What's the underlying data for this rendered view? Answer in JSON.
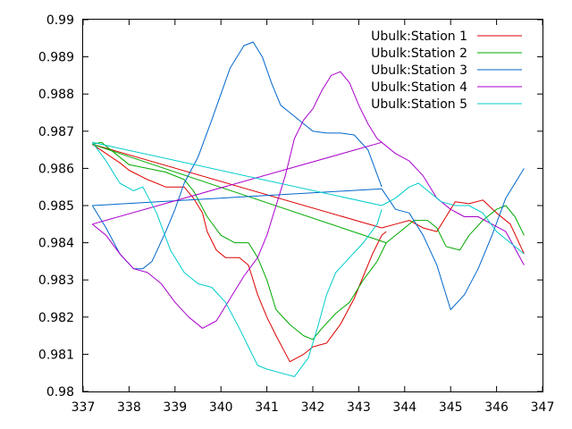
{
  "chart_data": {
    "type": "line",
    "title": "",
    "xlabel": "",
    "ylabel": "",
    "xlim": [
      337,
      347
    ],
    "ylim": [
      0.98,
      0.99
    ],
    "x_ticks": [
      "337",
      "338",
      "339",
      "340",
      "341",
      "342",
      "343",
      "344",
      "345",
      "346",
      "347"
    ],
    "y_ticks": [
      "0.98",
      "0.981",
      "0.982",
      "0.983",
      "0.984",
      "0.985",
      "0.986",
      "0.987",
      "0.988",
      "0.989",
      "0.99"
    ],
    "grid": false,
    "legend_position": "top-right",
    "series": [
      {
        "name": "Ubulk:Station 1",
        "color": "#dd0000",
        "segments": [
          [
            [
              337.2,
              0.98665
            ],
            [
              337.5,
              0.9864
            ],
            [
              337.8,
              0.98615
            ],
            [
              338.0,
              0.98595
            ],
            [
              338.4,
              0.9857
            ],
            [
              338.8,
              0.9855
            ],
            [
              339.2,
              0.9855
            ],
            [
              339.4,
              0.9852
            ],
            [
              339.6,
              0.9848
            ],
            [
              339.7,
              0.9843
            ],
            [
              339.9,
              0.9838
            ],
            [
              340.1,
              0.9836
            ],
            [
              340.4,
              0.9836
            ],
            [
              340.6,
              0.9834
            ],
            [
              340.8,
              0.9826
            ],
            [
              341.0,
              0.982
            ],
            [
              341.2,
              0.9815
            ],
            [
              341.5,
              0.9808
            ],
            [
              341.8,
              0.981
            ],
            [
              342.0,
              0.9812
            ],
            [
              342.3,
              0.9813
            ],
            [
              342.6,
              0.9818
            ],
            [
              342.9,
              0.9825
            ],
            [
              343.1,
              0.9831
            ],
            [
              343.3,
              0.9837
            ],
            [
              343.5,
              0.9842
            ],
            [
              343.6,
              0.9843
            ]
          ],
          [
            [
              343.5,
              0.9844
            ],
            [
              337.2,
              0.98665
            ]
          ],
          [
            [
              343.5,
              0.9844
            ],
            [
              343.8,
              0.9845
            ],
            [
              344.1,
              0.9846
            ],
            [
              344.4,
              0.9844
            ],
            [
              344.7,
              0.9843
            ],
            [
              344.9,
              0.9847
            ],
            [
              345.1,
              0.9851
            ],
            [
              345.4,
              0.98505
            ],
            [
              345.7,
              0.98515
            ],
            [
              346.0,
              0.9848
            ],
            [
              346.3,
              0.9845
            ],
            [
              346.6,
              0.9837
            ]
          ]
        ]
      },
      {
        "name": "Ubulk:Station 2",
        "color": "#00aa00",
        "segments": [
          [
            [
              337.2,
              0.98665
            ],
            [
              337.4,
              0.9867
            ],
            [
              337.7,
              0.9864
            ],
            [
              338.0,
              0.9861
            ],
            [
              338.4,
              0.986
            ],
            [
              338.8,
              0.9859
            ],
            [
              339.2,
              0.9857
            ],
            [
              339.4,
              0.9854
            ],
            [
              339.7,
              0.9847
            ],
            [
              340.0,
              0.9842
            ],
            [
              340.3,
              0.984
            ],
            [
              340.6,
              0.984
            ],
            [
              340.8,
              0.9836
            ],
            [
              341.0,
              0.983
            ],
            [
              341.2,
              0.9822
            ],
            [
              341.5,
              0.9818
            ],
            [
              341.8,
              0.9815
            ],
            [
              342.0,
              0.9814
            ],
            [
              342.2,
              0.9817
            ],
            [
              342.5,
              0.9821
            ],
            [
              342.8,
              0.9824
            ],
            [
              343.1,
              0.983
            ],
            [
              343.4,
              0.9835
            ],
            [
              343.6,
              0.984
            ]
          ],
          [
            [
              343.6,
              0.984
            ],
            [
              337.2,
              0.98665
            ]
          ],
          [
            [
              343.6,
              0.984
            ],
            [
              343.9,
              0.9843
            ],
            [
              344.2,
              0.9846
            ],
            [
              344.5,
              0.9846
            ],
            [
              344.7,
              0.9844
            ],
            [
              344.9,
              0.9839
            ],
            [
              345.2,
              0.9838
            ],
            [
              345.4,
              0.9842
            ],
            [
              345.7,
              0.9846
            ],
            [
              346.0,
              0.9849
            ],
            [
              346.2,
              0.985
            ],
            [
              346.4,
              0.9847
            ],
            [
              346.6,
              0.9842
            ]
          ]
        ]
      },
      {
        "name": "Ubulk:Station 3",
        "color": "#0066cc",
        "segments": [
          [
            [
              337.2,
              0.985
            ],
            [
              337.5,
              0.9844
            ],
            [
              337.8,
              0.9837
            ],
            [
              338.1,
              0.9833
            ],
            [
              338.3,
              0.9833
            ],
            [
              338.5,
              0.9835
            ],
            [
              338.8,
              0.9843
            ],
            [
              339.0,
              0.9849
            ],
            [
              339.2,
              0.9856
            ],
            [
              339.5,
              0.9863
            ],
            [
              339.8,
              0.9873
            ],
            [
              340.0,
              0.988
            ],
            [
              340.2,
              0.9887
            ],
            [
              340.5,
              0.9893
            ],
            [
              340.7,
              0.9894
            ],
            [
              340.9,
              0.989
            ],
            [
              341.1,
              0.9883
            ],
            [
              341.3,
              0.9877
            ],
            [
              341.5,
              0.9875
            ],
            [
              341.8,
              0.9872
            ],
            [
              342.0,
              0.987
            ],
            [
              342.3,
              0.98695
            ],
            [
              342.6,
              0.98695
            ],
            [
              342.9,
              0.9869
            ],
            [
              343.2,
              0.9865
            ],
            [
              343.5,
              0.9855
            ]
          ],
          [
            [
              343.5,
              0.98545
            ],
            [
              337.2,
              0.985
            ]
          ],
          [
            [
              343.5,
              0.98545
            ],
            [
              343.8,
              0.9849
            ],
            [
              344.1,
              0.9848
            ],
            [
              344.4,
              0.9842
            ],
            [
              344.7,
              0.9834
            ],
            [
              345.0,
              0.9822
            ],
            [
              345.3,
              0.9826
            ],
            [
              345.6,
              0.9833
            ],
            [
              345.9,
              0.9842
            ],
            [
              346.2,
              0.9852
            ],
            [
              346.6,
              0.986
            ]
          ]
        ]
      },
      {
        "name": "Ubulk:Station 4",
        "color": "#aa00cc",
        "segments": [
          [
            [
              337.2,
              0.9845
            ],
            [
              337.5,
              0.9842
            ],
            [
              337.8,
              0.9837
            ],
            [
              338.1,
              0.9833
            ],
            [
              338.4,
              0.9832
            ],
            [
              338.7,
              0.9829
            ],
            [
              339.0,
              0.9824
            ],
            [
              339.3,
              0.982
            ],
            [
              339.6,
              0.9817
            ],
            [
              339.9,
              0.9819
            ],
            [
              340.2,
              0.9825
            ],
            [
              340.5,
              0.9831
            ],
            [
              340.8,
              0.9836
            ],
            [
              341.0,
              0.9842
            ],
            [
              341.2,
              0.985
            ],
            [
              341.4,
              0.9858
            ],
            [
              341.6,
              0.9868
            ],
            [
              341.8,
              0.9873
            ],
            [
              342.0,
              0.9876
            ],
            [
              342.2,
              0.9881
            ],
            [
              342.4,
              0.9885
            ],
            [
              342.6,
              0.9886
            ],
            [
              342.8,
              0.9883
            ],
            [
              343.0,
              0.9877
            ],
            [
              343.2,
              0.9872
            ],
            [
              343.4,
              0.9868
            ],
            [
              343.5,
              0.9867
            ]
          ],
          [
            [
              343.5,
              0.9867
            ],
            [
              337.2,
              0.9845
            ]
          ],
          [
            [
              343.5,
              0.9867
            ],
            [
              343.8,
              0.9864
            ],
            [
              344.1,
              0.9862
            ],
            [
              344.4,
              0.9858
            ],
            [
              344.7,
              0.9852
            ],
            [
              345.0,
              0.9849
            ],
            [
              345.3,
              0.9847
            ],
            [
              345.6,
              0.9847
            ],
            [
              345.9,
              0.9845
            ],
            [
              346.2,
              0.9843
            ],
            [
              346.6,
              0.9834
            ]
          ]
        ]
      },
      {
        "name": "Ubulk:Station 5",
        "color": "#00cccc",
        "segments": [
          [
            [
              337.2,
              0.9867
            ],
            [
              337.5,
              0.9862
            ],
            [
              337.8,
              0.9856
            ],
            [
              338.1,
              0.9854
            ],
            [
              338.3,
              0.9855
            ],
            [
              338.6,
              0.9848
            ],
            [
              338.9,
              0.9838
            ],
            [
              339.2,
              0.9832
            ],
            [
              339.5,
              0.9829
            ],
            [
              339.8,
              0.9828
            ],
            [
              340.1,
              0.9824
            ],
            [
              340.4,
              0.9817
            ],
            [
              340.6,
              0.9812
            ],
            [
              340.8,
              0.9807
            ],
            [
              341.0,
              0.9806
            ],
            [
              341.3,
              0.9805
            ],
            [
              341.6,
              0.9804
            ],
            [
              341.9,
              0.9809
            ],
            [
              342.1,
              0.9817
            ],
            [
              342.3,
              0.9826
            ],
            [
              342.5,
              0.9832
            ],
            [
              342.8,
              0.9836
            ],
            [
              343.1,
              0.984
            ],
            [
              343.4,
              0.9845
            ],
            [
              343.5,
              0.9849
            ]
          ],
          [
            [
              343.5,
              0.985
            ],
            [
              337.2,
              0.9867
            ]
          ],
          [
            [
              343.5,
              0.985
            ],
            [
              343.8,
              0.9852
            ],
            [
              344.1,
              0.9855
            ],
            [
              344.3,
              0.9856
            ],
            [
              344.5,
              0.9854
            ],
            [
              344.8,
              0.9851
            ],
            [
              345.1,
              0.985
            ],
            [
              345.4,
              0.985
            ],
            [
              345.7,
              0.9848
            ],
            [
              346.0,
              0.9843
            ],
            [
              346.3,
              0.984
            ],
            [
              346.6,
              0.9837
            ]
          ]
        ]
      }
    ]
  }
}
